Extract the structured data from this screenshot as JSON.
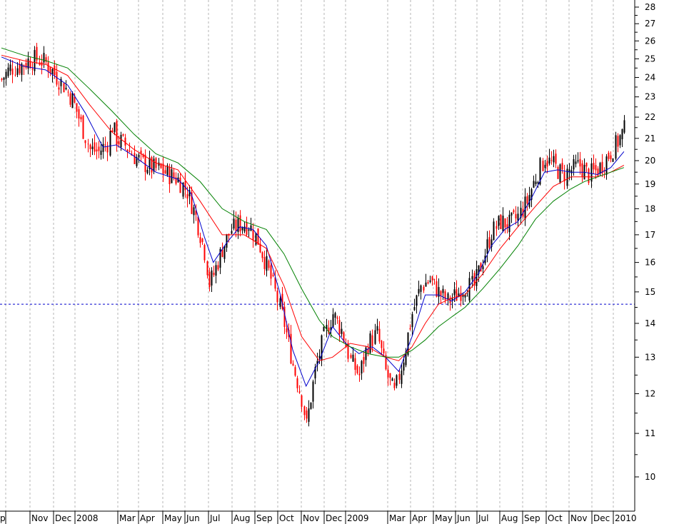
{
  "chart_data": {
    "type": "candlestick",
    "title": "",
    "xlabel": "",
    "ylabel": "",
    "y_scale": "log",
    "ylim": [
      9,
      28.5
    ],
    "grid": {
      "vertical": true,
      "horizontal": false
    },
    "legend": "none",
    "x_tick_labels": [
      "p",
      "Nov",
      "Dec",
      "2008",
      "Mar",
      "Apr",
      "May",
      "Jun",
      "Jul",
      "Aug",
      "Sep",
      "Oct",
      "Nov",
      "Dec",
      "2009",
      "Mar",
      "Apr",
      "May",
      "Jun",
      "Jul",
      "Aug",
      "Sep",
      "Oct",
      "Nov",
      "Dec",
      "2010"
    ],
    "y_tick_labels": [
      "10",
      "11",
      "12",
      "13",
      "14",
      "15",
      "16",
      "17",
      "18",
      "19",
      "20",
      "21",
      "22",
      "23",
      "24",
      "25",
      "26",
      "27",
      "28"
    ],
    "y_ticks": [
      10,
      11,
      12,
      13,
      14,
      15,
      16,
      17,
      18,
      19,
      20,
      21,
      22,
      23,
      24,
      25,
      26,
      27,
      28
    ],
    "reference_line": {
      "value": 14.6,
      "color": "#0000cc",
      "style": "dashed"
    },
    "up_color": "#000000",
    "down_color": "#ff0000",
    "closes": [
      [
        0,
        23.9
      ],
      [
        4,
        24.5
      ],
      [
        8,
        24.6
      ],
      [
        12,
        24.9
      ],
      [
        16,
        25.0
      ],
      [
        20,
        24.8
      ],
      [
        24,
        24.2
      ],
      [
        28,
        23.6
      ],
      [
        32,
        22.9
      ],
      [
        36,
        21.7
      ],
      [
        40,
        20.5
      ],
      [
        44,
        20.4
      ],
      [
        48,
        20.8
      ],
      [
        50,
        21.6
      ],
      [
        52,
        21.0
      ],
      [
        56,
        20.7
      ],
      [
        60,
        20.2
      ],
      [
        64,
        19.9
      ],
      [
        68,
        19.7
      ],
      [
        72,
        19.6
      ],
      [
        76,
        19.4
      ],
      [
        80,
        19.2
      ],
      [
        84,
        18.7
      ],
      [
        88,
        17.7
      ],
      [
        92,
        16.4
      ],
      [
        94,
        15.3
      ],
      [
        96,
        15.6
      ],
      [
        100,
        16.5
      ],
      [
        104,
        17.2
      ],
      [
        108,
        17.4
      ],
      [
        112,
        17.4
      ],
      [
        116,
        16.8
      ],
      [
        120,
        15.9
      ],
      [
        124,
        15.0
      ],
      [
        128,
        14.0
      ],
      [
        132,
        12.8
      ],
      [
        136,
        11.9
      ],
      [
        138,
        11.2
      ],
      [
        142,
        12.6
      ],
      [
        146,
        13.6
      ],
      [
        150,
        14.3
      ],
      [
        154,
        13.8
      ],
      [
        158,
        12.9
      ],
      [
        162,
        12.5
      ],
      [
        166,
        13.4
      ],
      [
        170,
        13.7
      ],
      [
        174,
        12.6
      ],
      [
        178,
        12.0
      ],
      [
        182,
        13.0
      ],
      [
        186,
        14.3
      ],
      [
        190,
        15.2
      ],
      [
        194,
        15.4
      ],
      [
        198,
        15.0
      ],
      [
        202,
        14.7
      ],
      [
        206,
        14.9
      ],
      [
        210,
        15.2
      ],
      [
        214,
        15.2
      ],
      [
        218,
        16.1
      ],
      [
        222,
        17.1
      ],
      [
        226,
        17.5
      ],
      [
        230,
        17.4
      ],
      [
        234,
        17.7
      ],
      [
        238,
        18.3
      ],
      [
        242,
        19.3
      ],
      [
        246,
        20.1
      ],
      [
        250,
        19.8
      ],
      [
        254,
        19.4
      ],
      [
        258,
        19.6
      ],
      [
        262,
        19.8
      ],
      [
        266,
        19.4
      ],
      [
        270,
        19.6
      ],
      [
        274,
        20.1
      ],
      [
        278,
        20.7
      ],
      [
        282,
        21.4
      ]
    ],
    "series": [
      {
        "color": "#0000cc",
        "points": [
          [
            0,
            25.1
          ],
          [
            10,
            24.6
          ],
          [
            20,
            24.4
          ],
          [
            30,
            23.6
          ],
          [
            38,
            22.2
          ],
          [
            46,
            20.6
          ],
          [
            52,
            20.7
          ],
          [
            60,
            20.2
          ],
          [
            70,
            19.5
          ],
          [
            80,
            19.2
          ],
          [
            86,
            18.6
          ],
          [
            92,
            16.9
          ],
          [
            96,
            16.0
          ],
          [
            102,
            16.7
          ],
          [
            108,
            17.3
          ],
          [
            114,
            17.2
          ],
          [
            120,
            16.6
          ],
          [
            126,
            15.0
          ],
          [
            132,
            13.2
          ],
          [
            138,
            12.2
          ],
          [
            144,
            12.9
          ],
          [
            150,
            13.9
          ],
          [
            156,
            13.4
          ],
          [
            162,
            13.1
          ],
          [
            168,
            13.3
          ],
          [
            174,
            13.0
          ],
          [
            180,
            12.6
          ],
          [
            186,
            13.6
          ],
          [
            192,
            14.9
          ],
          [
            198,
            14.9
          ],
          [
            204,
            14.7
          ],
          [
            210,
            15.0
          ],
          [
            216,
            15.6
          ],
          [
            222,
            16.6
          ],
          [
            228,
            17.2
          ],
          [
            234,
            17.5
          ],
          [
            240,
            18.4
          ],
          [
            246,
            19.5
          ],
          [
            252,
            19.6
          ],
          [
            258,
            19.5
          ],
          [
            264,
            19.5
          ],
          [
            270,
            19.4
          ],
          [
            276,
            19.7
          ],
          [
            282,
            20.4
          ]
        ]
      },
      {
        "color": "#ff0000",
        "points": [
          [
            0,
            25.2
          ],
          [
            10,
            24.9
          ],
          [
            20,
            24.7
          ],
          [
            30,
            24.1
          ],
          [
            40,
            22.6
          ],
          [
            50,
            21.3
          ],
          [
            60,
            20.5
          ],
          [
            70,
            19.9
          ],
          [
            80,
            19.6
          ],
          [
            90,
            18.3
          ],
          [
            100,
            17.0
          ],
          [
            110,
            17.0
          ],
          [
            120,
            16.5
          ],
          [
            128,
            15.2
          ],
          [
            136,
            13.6
          ],
          [
            144,
            12.9
          ],
          [
            150,
            13.0
          ],
          [
            158,
            13.4
          ],
          [
            166,
            13.3
          ],
          [
            174,
            13.0
          ],
          [
            180,
            12.9
          ],
          [
            186,
            13.3
          ],
          [
            192,
            14.0
          ],
          [
            198,
            14.6
          ],
          [
            204,
            14.8
          ],
          [
            210,
            14.9
          ],
          [
            218,
            15.6
          ],
          [
            226,
            16.5
          ],
          [
            234,
            17.3
          ],
          [
            242,
            18.1
          ],
          [
            250,
            18.9
          ],
          [
            258,
            19.3
          ],
          [
            264,
            19.3
          ],
          [
            270,
            19.3
          ],
          [
            276,
            19.5
          ],
          [
            282,
            19.8
          ]
        ]
      },
      {
        "color": "#008000",
        "points": [
          [
            0,
            25.6
          ],
          [
            10,
            25.2
          ],
          [
            20,
            24.9
          ],
          [
            30,
            24.5
          ],
          [
            40,
            23.4
          ],
          [
            50,
            22.3
          ],
          [
            60,
            21.2
          ],
          [
            70,
            20.3
          ],
          [
            80,
            19.9
          ],
          [
            90,
            19.1
          ],
          [
            100,
            18.0
          ],
          [
            110,
            17.5
          ],
          [
            120,
            17.2
          ],
          [
            128,
            16.3
          ],
          [
            136,
            15.1
          ],
          [
            144,
            14.1
          ],
          [
            150,
            13.6
          ],
          [
            158,
            13.3
          ],
          [
            166,
            13.1
          ],
          [
            174,
            13.0
          ],
          [
            180,
            13.0
          ],
          [
            186,
            13.2
          ],
          [
            192,
            13.5
          ],
          [
            198,
            13.9
          ],
          [
            204,
            14.2
          ],
          [
            210,
            14.5
          ],
          [
            218,
            15.1
          ],
          [
            226,
            15.8
          ],
          [
            234,
            16.6
          ],
          [
            242,
            17.6
          ],
          [
            250,
            18.3
          ],
          [
            258,
            18.8
          ],
          [
            264,
            19.1
          ],
          [
            270,
            19.3
          ],
          [
            276,
            19.5
          ],
          [
            282,
            19.7
          ]
        ]
      }
    ]
  }
}
